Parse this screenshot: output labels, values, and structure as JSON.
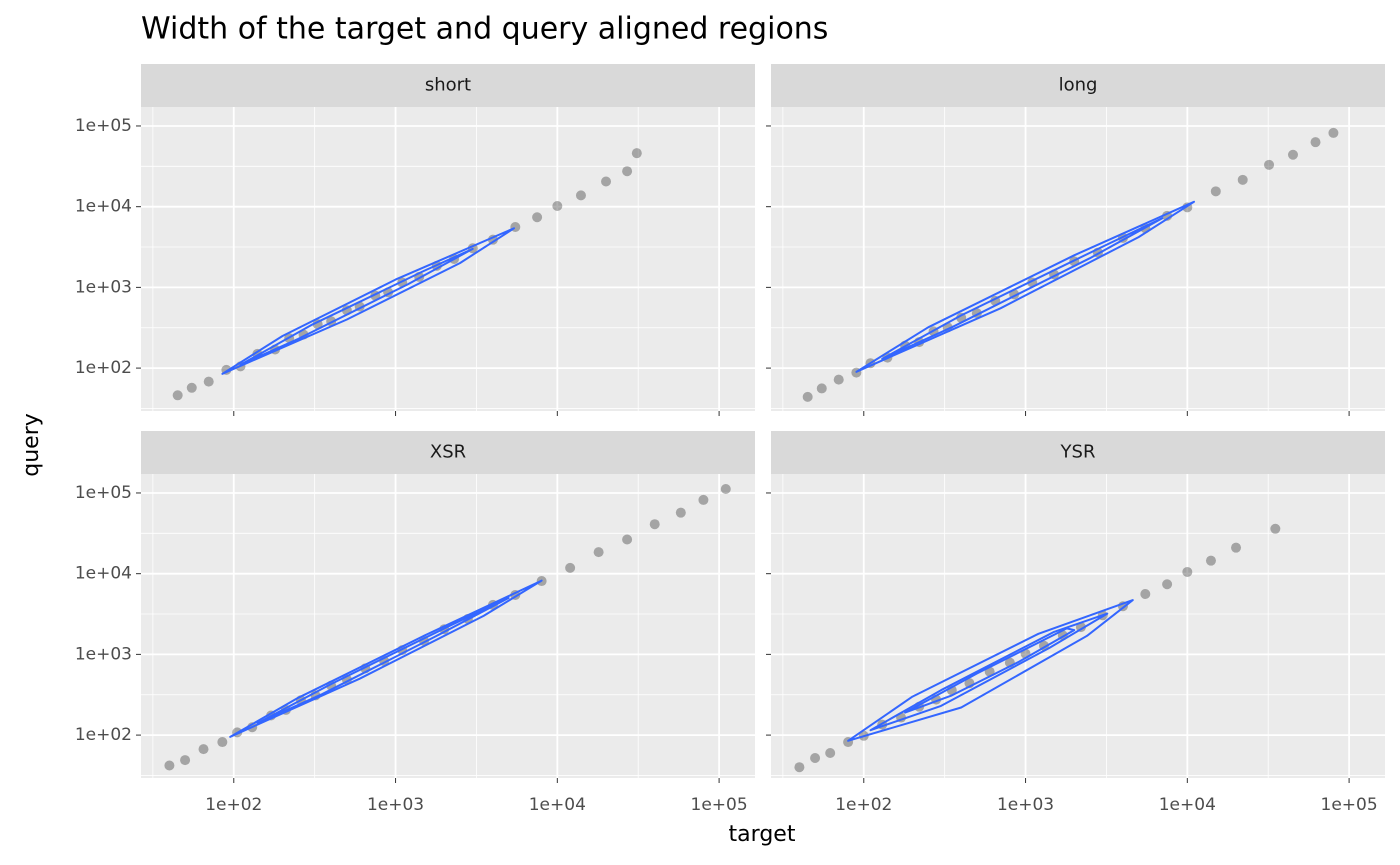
{
  "chart_data": {
    "type": "scatter",
    "title": "Width of the target and query aligned regions",
    "x_label": "target",
    "y_label": "query",
    "log_x": true,
    "log_y": true,
    "grid": true,
    "point_color": "#000000",
    "contour_color": "#3366ff",
    "xlim": [
      26.7,
      166700
    ],
    "ylim": [
      29.4,
      171800
    ],
    "xticks": [
      {
        "value": 100,
        "label": "1e+02"
      },
      {
        "value": 1000,
        "label": "1e+03"
      },
      {
        "value": 10000,
        "label": "1e+04"
      },
      {
        "value": 100000,
        "label": "1e+05"
      }
    ],
    "yticks": [
      {
        "value": 100,
        "label": "1e+02"
      },
      {
        "value": 1000,
        "label": "1e+03"
      },
      {
        "value": 10000,
        "label": "1e+04"
      },
      {
        "value": 100000,
        "label": "1e+05"
      }
    ],
    "minor_ticks": [
      31.62,
      316.2,
      3162,
      31623
    ],
    "facets": [
      {
        "label": "short",
        "x": [
          45,
          55,
          70,
          90,
          110,
          140,
          180,
          220,
          270,
          330,
          400,
          500,
          600,
          750,
          900,
          1100,
          1400,
          1800,
          2300,
          3000,
          4000,
          5500,
          7500,
          10000,
          14000,
          20000,
          27000,
          31000
        ],
        "y": [
          46,
          57,
          68,
          95,
          105,
          150,
          170,
          235,
          260,
          350,
          380,
          520,
          580,
          790,
          870,
          1150,
          1350,
          1850,
          2250,
          3050,
          3900,
          5600,
          7400,
          10200,
          13800,
          20500,
          27500,
          46000
        ],
        "contours": [
          {
            "x": [
              85,
              200,
              1000,
              5400,
              2500,
              500
            ],
            "y": [
              85,
              250,
              1250,
              5400,
              2000,
              400
            ]
          },
          {
            "x": [
              110,
              300,
              1500,
              3000,
              1200,
              250
            ],
            "y": [
              110,
              340,
              1600,
              3000,
              1100,
              230
            ]
          }
        ]
      },
      {
        "label": "long",
        "x": [
          45,
          55,
          70,
          90,
          110,
          140,
          180,
          220,
          270,
          330,
          400,
          500,
          650,
          850,
          1100,
          1500,
          2000,
          2800,
          4000,
          5500,
          7500,
          10000,
          15000,
          22000,
          32000,
          45000,
          62000,
          80000
        ],
        "y": [
          44,
          56,
          72,
          88,
          115,
          135,
          190,
          210,
          285,
          320,
          420,
          480,
          680,
          820,
          1150,
          1450,
          2100,
          2700,
          4100,
          5400,
          7700,
          9800,
          15500,
          21500,
          33000,
          44000,
          63000,
          82000
        ],
        "contours": [
          {
            "x": [
              90,
              250,
              2000,
              11000,
              5000,
              700
            ],
            "y": [
              90,
              320,
              2500,
              11500,
              4200,
              550
            ]
          },
          {
            "x": [
              130,
              400,
              3000,
              7000,
              2500,
              350
            ],
            "y": [
              130,
              450,
              3200,
              7200,
              2300,
              320
            ]
          }
        ]
      },
      {
        "label": "XSR",
        "x": [
          40,
          50,
          65,
          85,
          105,
          130,
          170,
          210,
          260,
          320,
          400,
          500,
          650,
          850,
          1100,
          1500,
          2000,
          2800,
          4000,
          5500,
          8000,
          12000,
          18000,
          27000,
          40000,
          58000,
          80000,
          110000
        ],
        "y": [
          42,
          49,
          67,
          82,
          108,
          125,
          175,
          205,
          270,
          310,
          410,
          490,
          670,
          830,
          1130,
          1470,
          2050,
          2750,
          4100,
          5450,
          8100,
          11800,
          18500,
          26500,
          41000,
          57000,
          82000,
          112000
        ],
        "contours": [
          {
            "x": [
              95,
              250,
              1500,
              8000,
              3500,
              600
            ],
            "y": [
              95,
              290,
              1700,
              8200,
              3000,
              500
            ]
          },
          {
            "x": [
              140,
              400,
              2200,
              5000,
              1800,
              350
            ],
            "y": [
              140,
              430,
              2300,
              5000,
              1700,
              320
            ]
          }
        ]
      },
      {
        "label": "YSR",
        "x": [
          40,
          50,
          62,
          80,
          100,
          130,
          170,
          220,
          280,
          350,
          450,
          600,
          800,
          1000,
          1300,
          1700,
          2200,
          3000,
          4000,
          5500,
          7500,
          10000,
          14000,
          20000,
          35000
        ],
        "y": [
          40,
          52,
          60,
          82,
          98,
          135,
          165,
          225,
          275,
          360,
          440,
          610,
          790,
          1020,
          1280,
          1720,
          2180,
          3050,
          3950,
          5600,
          7400,
          10500,
          14500,
          21000,
          36000
        ],
        "contours": [
          {
            "x": [
              80,
              200,
              1200,
              4600,
              2400,
              400
            ],
            "y": [
              85,
              300,
              1800,
              4700,
              1700,
              220
            ]
          },
          {
            "x": [
              110,
              300,
              1500,
              3200,
              1400,
              300
            ],
            "y": [
              115,
              360,
              1900,
              3200,
              1200,
              230
            ]
          },
          {
            "x": [
              180,
              500,
              1800,
              2000,
              900,
              350
            ],
            "y": [
              190,
              580,
              2100,
              2000,
              800,
              310
            ]
          }
        ]
      }
    ]
  }
}
